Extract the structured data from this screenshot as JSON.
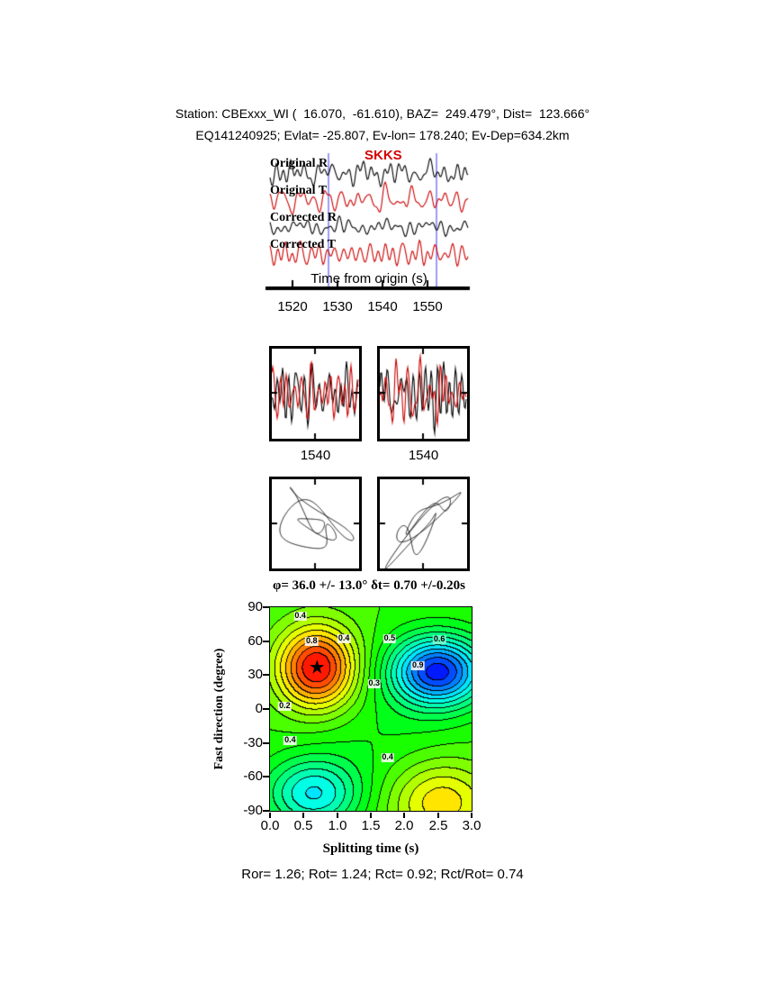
{
  "header": {
    "line1": "Station: CBExxx_WI (  16.070,  -61.610), BAZ=  249.479°, Dist=  123.666°",
    "line2": "EQ141240925; Evlat= -25.807, Ev-lon= 178.240; Ev-Dep=634.2km"
  },
  "waveforms": {
    "phase": "SKKS",
    "trace_labels": [
      "Original R",
      "Original T",
      "Corrected R",
      "Corrected T"
    ],
    "xlabel": "Time from origin (s)",
    "xticks": [
      "1520",
      "1530",
      "1540",
      "1550"
    ]
  },
  "windows": {
    "left_tick": "1540",
    "right_tick": "1540"
  },
  "surface": {
    "title": "φ= 36.0 +/- 13.0° δt= 0.70 +/-0.20s",
    "ylabel": "Fast direction (degree)",
    "xlabel": "Splitting time (s)",
    "xticks": [
      "0.0",
      "0.5",
      "1.0",
      "1.5",
      "2.0",
      "2.5",
      "3.0"
    ],
    "yticks": [
      "90",
      "60",
      "30",
      "0",
      "-30",
      "-60",
      "-90"
    ],
    "star_glyph": "★"
  },
  "footer": {
    "ratios": "Ror= 1.26; Rot= 1.24; Rct= 0.92; Rct/Rot= 0.74"
  },
  "colors": {
    "trace_black": "#000000",
    "trace_red": "#cc0000",
    "window_blue": "#3a3af0",
    "phase_red": "#d40000"
  },
  "chart_data": [
    {
      "type": "line",
      "id": "seismogram-panel",
      "title": "SKKS",
      "traces": [
        {
          "name": "Original R",
          "color": "#000000"
        },
        {
          "name": "Original T",
          "color": "#cc0000"
        },
        {
          "name": "Corrected R",
          "color": "#000000"
        },
        {
          "name": "Corrected T",
          "color": "#cc0000"
        }
      ],
      "xlabel": "Time from origin (s)",
      "xlim": [
        1513,
        1561
      ],
      "xticks": [
        1520,
        1530,
        1540,
        1550
      ],
      "window_s": [
        1528,
        1552
      ],
      "window_color": "#3a3af0"
    },
    {
      "type": "line",
      "id": "window-waveforms-left",
      "series": [
        "R",
        "T"
      ],
      "xticks": [
        1540
      ]
    },
    {
      "type": "line",
      "id": "window-waveforms-right",
      "series": [
        "R",
        "T"
      ],
      "xticks": [
        1540
      ]
    },
    {
      "type": "scatter",
      "id": "particle-motion-original"
    },
    {
      "type": "scatter",
      "id": "particle-motion-corrected"
    },
    {
      "type": "heatmap",
      "id": "splitting-error-surface",
      "title": "φ= 36.0 +/- 13.0° δt= 0.70 +/-0.20s",
      "xlabel": "Splitting time (s)",
      "ylabel": "Fast direction (degree)",
      "xlim": [
        0,
        3
      ],
      "ylim": [
        -90,
        90
      ],
      "xticks": [
        0,
        0.5,
        1,
        1.5,
        2,
        2.5,
        3
      ],
      "yticks": [
        90,
        60,
        30,
        0,
        -30,
        -60,
        -90
      ],
      "best_dt": 0.7,
      "best_dt_err": 0.2,
      "best_phi": 36.0,
      "best_phi_err": 13.0,
      "contour_interval": 0.05,
      "features": [
        {
          "kind": "max",
          "x": 0.7,
          "y": 36,
          "note": "best solution, marked with star"
        },
        {
          "kind": "min",
          "x": 2.5,
          "y": 33,
          "note": "deep blue low"
        },
        {
          "kind": "min",
          "x": 0.65,
          "y": -75,
          "note": "cyan low"
        },
        {
          "kind": "max",
          "x": 2.55,
          "y": -82,
          "note": "warm high"
        }
      ],
      "contour_labels": [
        {
          "text": "0.4",
          "x": 0.45,
          "y": 82
        },
        {
          "text": "0.8",
          "x": 0.62,
          "y": 60
        },
        {
          "text": "0.4",
          "x": 1.1,
          "y": 62
        },
        {
          "text": "0.5",
          "x": 1.78,
          "y": 62
        },
        {
          "text": "0.6",
          "x": 2.52,
          "y": 61,
          "bg": "#6ef7c9"
        },
        {
          "text": "0.9",
          "x": 2.2,
          "y": 38
        },
        {
          "text": "0.3",
          "x": 1.55,
          "y": 22
        },
        {
          "text": "0.2",
          "x": 0.22,
          "y": 2
        },
        {
          "text": "0.4",
          "x": 0.3,
          "y": -28
        },
        {
          "text": "0.4",
          "x": 1.75,
          "y": -43
        }
      ]
    },
    {
      "type": "table",
      "id": "quality-ratios",
      "values": {
        "Ror": 1.26,
        "Rot": 1.24,
        "Rct": 0.92,
        "Rct/Rot": 0.74
      }
    }
  ]
}
